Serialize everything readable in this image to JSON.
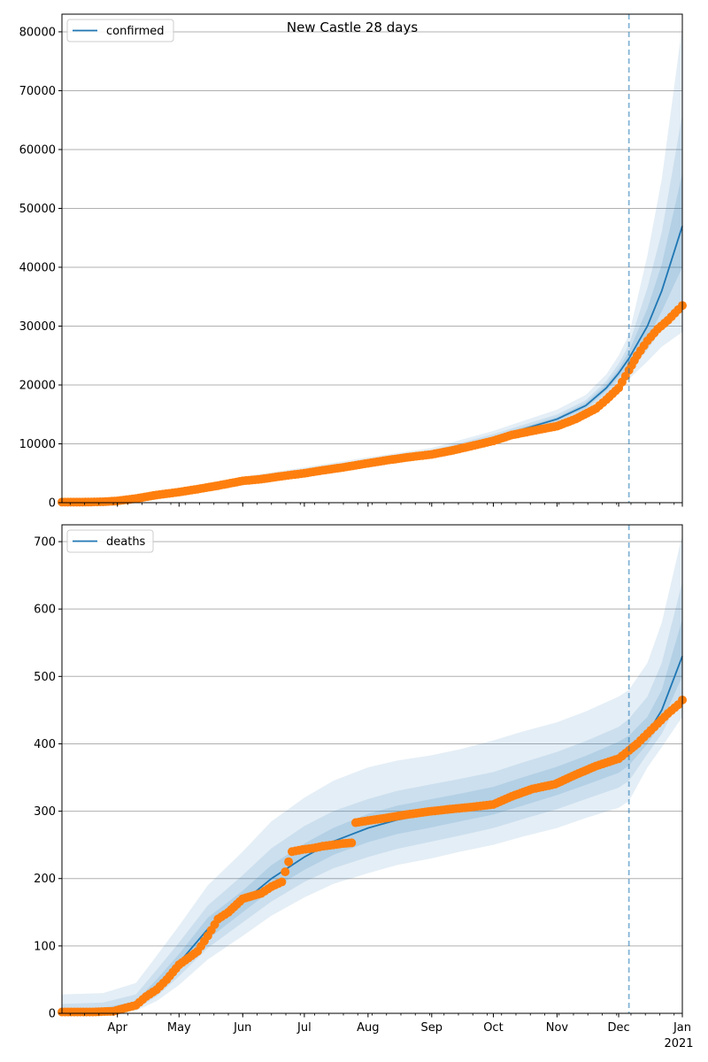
{
  "title": "New Castle 28 days",
  "x_axis": {
    "month_labels": [
      "Apr",
      "May",
      "Jun",
      "Jul",
      "Aug",
      "Sep",
      "Oct",
      "Nov",
      "Dec",
      "Jan"
    ],
    "year_label": "2021",
    "range": [
      "2020-03-05",
      "2021-01-01"
    ]
  },
  "forecast_start": "2020-12-06",
  "colors": {
    "model": "#1f77b4",
    "observed": "#ff7f0e",
    "band": "#1f77b4",
    "grid": "#b0b0b0",
    "forecast_line": "#1f77b4"
  },
  "chart_data": [
    {
      "type": "line",
      "name": "confirmed",
      "legend": "confirmed",
      "legend_position": "top-left",
      "grid": "horizontal",
      "ylim": [
        0,
        83000
      ],
      "yticks": [
        0,
        10000,
        20000,
        30000,
        40000,
        50000,
        60000,
        70000,
        80000
      ],
      "model_line": {
        "name": "confirmed",
        "x": [
          "2020-03-05",
          "2020-04-01",
          "2020-05-01",
          "2020-06-01",
          "2020-07-01",
          "2020-08-01",
          "2020-09-01",
          "2020-10-01",
          "2020-11-01",
          "2020-11-15",
          "2020-11-25",
          "2020-12-01",
          "2020-12-06",
          "2020-12-15",
          "2020-12-22",
          "2021-01-01"
        ],
        "y": [
          0,
          300,
          1900,
          3800,
          5300,
          6900,
          8400,
          11000,
          14200,
          16500,
          19500,
          22000,
          24500,
          30000,
          36000,
          47000
        ]
      },
      "bands": [
        {
          "x": [
            "2020-03-05",
            "2020-04-01",
            "2020-05-01",
            "2020-06-01",
            "2020-07-01",
            "2020-08-01",
            "2020-09-01",
            "2020-10-01",
            "2020-11-01",
            "2020-11-15",
            "2020-11-25",
            "2020-12-01",
            "2020-12-06",
            "2020-12-15",
            "2020-12-22",
            "2021-01-01"
          ],
          "lower": [
            0,
            150,
            1500,
            3300,
            4700,
            6200,
            7600,
            10000,
            13000,
            15000,
            17800,
            19800,
            21000,
            24000,
            26500,
            29000
          ],
          "upper": [
            200,
            500,
            2400,
            4400,
            6000,
            7700,
            9300,
            12200,
            15800,
            18300,
            21800,
            25000,
            28500,
            42000,
            55000,
            81000
          ]
        },
        {
          "x": [
            "2020-03-05",
            "2020-04-01",
            "2020-05-01",
            "2020-06-01",
            "2020-07-01",
            "2020-08-01",
            "2020-09-01",
            "2020-10-01",
            "2020-11-01",
            "2020-11-15",
            "2020-11-25",
            "2020-12-01",
            "2020-12-06",
            "2020-12-15",
            "2020-12-22",
            "2021-01-01"
          ],
          "lower": [
            0,
            200,
            1650,
            3500,
            4950,
            6500,
            7950,
            10450,
            13500,
            15600,
            18500,
            20700,
            22200,
            26000,
            29500,
            34000
          ],
          "upper": [
            120,
            420,
            2200,
            4150,
            5700,
            7350,
            8900,
            11650,
            15000,
            17400,
            20700,
            23600,
            26800,
            36500,
            46000,
            66000
          ]
        },
        {
          "x": [
            "2020-03-05",
            "2020-04-01",
            "2020-05-01",
            "2020-06-01",
            "2020-07-01",
            "2020-08-01",
            "2020-09-01",
            "2020-10-01",
            "2020-11-01",
            "2020-11-15",
            "2020-11-25",
            "2020-12-01",
            "2020-12-06",
            "2020-12-15",
            "2020-12-22",
            "2021-01-01"
          ],
          "lower": [
            0,
            250,
            1780,
            3650,
            5120,
            6700,
            8180,
            10720,
            13850,
            16050,
            19000,
            21350,
            23300,
            27800,
            32500,
            40000
          ],
          "upper": [
            60,
            360,
            2030,
            3970,
            5480,
            7100,
            8620,
            11300,
            14550,
            16950,
            20100,
            22700,
            25700,
            33000,
            40500,
            56000
          ]
        }
      ],
      "observed": {
        "x": [
          "2020-03-05",
          "2020-03-15",
          "2020-03-25",
          "2020-04-01",
          "2020-04-10",
          "2020-04-20",
          "2020-05-01",
          "2020-05-10",
          "2020-05-20",
          "2020-06-01",
          "2020-06-10",
          "2020-06-20",
          "2020-07-01",
          "2020-07-10",
          "2020-07-20",
          "2020-08-01",
          "2020-08-10",
          "2020-08-20",
          "2020-09-01",
          "2020-09-10",
          "2020-09-20",
          "2020-10-01",
          "2020-10-10",
          "2020-10-20",
          "2020-11-01",
          "2020-11-10",
          "2020-11-20",
          "2020-11-25",
          "2020-12-01",
          "2020-12-06",
          "2020-12-10",
          "2020-12-15",
          "2020-12-20",
          "2020-12-25",
          "2020-12-30",
          "2021-01-01"
        ],
        "y": [
          100,
          100,
          150,
          300,
          700,
          1300,
          1800,
          2300,
          2900,
          3700,
          4000,
          4500,
          5000,
          5500,
          6000,
          6700,
          7200,
          7700,
          8200,
          8800,
          9600,
          10500,
          11500,
          12200,
          13000,
          14200,
          16000,
          17500,
          19500,
          22500,
          25000,
          27500,
          29500,
          31000,
          32800,
          33500
        ]
      }
    },
    {
      "type": "line",
      "name": "deaths",
      "legend": "deaths",
      "legend_position": "top-left",
      "grid": "horizontal",
      "ylim": [
        0,
        725
      ],
      "yticks": [
        0,
        100,
        200,
        300,
        400,
        500,
        600,
        700
      ],
      "model_line": {
        "name": "deaths",
        "x": [
          "2020-03-05",
          "2020-03-25",
          "2020-04-10",
          "2020-04-20",
          "2020-05-01",
          "2020-05-15",
          "2020-06-01",
          "2020-06-15",
          "2020-07-01",
          "2020-07-15",
          "2020-08-01",
          "2020-08-15",
          "2020-09-01",
          "2020-09-15",
          "2020-10-01",
          "2020-10-15",
          "2020-11-01",
          "2020-11-15",
          "2020-12-01",
          "2020-12-06",
          "2020-12-15",
          "2020-12-22",
          "2021-01-01"
        ],
        "y": [
          0,
          2,
          12,
          40,
          75,
          125,
          165,
          200,
          232,
          255,
          275,
          287,
          297,
          305,
          315,
          328,
          345,
          360,
          380,
          390,
          415,
          450,
          530
        ]
      },
      "bands": [
        {
          "x": [
            "2020-03-05",
            "2020-03-25",
            "2020-04-10",
            "2020-04-20",
            "2020-05-01",
            "2020-05-15",
            "2020-06-01",
            "2020-06-15",
            "2020-07-01",
            "2020-07-15",
            "2020-08-01",
            "2020-08-15",
            "2020-09-01",
            "2020-09-15",
            "2020-10-01",
            "2020-10-15",
            "2020-11-01",
            "2020-11-15",
            "2020-12-01",
            "2020-12-06",
            "2020-12-15",
            "2020-12-22",
            "2021-01-01"
          ],
          "lower": [
            0,
            0,
            4,
            18,
            42,
            80,
            115,
            145,
            172,
            192,
            208,
            220,
            230,
            240,
            250,
            262,
            275,
            290,
            305,
            315,
            365,
            395,
            440
          ],
          "upper": [
            28,
            30,
            45,
            85,
            130,
            190,
            240,
            285,
            320,
            345,
            365,
            375,
            383,
            392,
            405,
            418,
            432,
            448,
            470,
            480,
            520,
            580,
            710
          ]
        },
        {
          "x": [
            "2020-03-05",
            "2020-03-25",
            "2020-04-10",
            "2020-04-20",
            "2020-05-01",
            "2020-05-15",
            "2020-06-01",
            "2020-06-15",
            "2020-07-01",
            "2020-07-15",
            "2020-08-01",
            "2020-08-15",
            "2020-09-01",
            "2020-09-15",
            "2020-10-01",
            "2020-10-15",
            "2020-11-01",
            "2020-11-15",
            "2020-12-01",
            "2020-12-06",
            "2020-12-15",
            "2020-12-22",
            "2021-01-01"
          ],
          "lower": [
            0,
            0,
            6,
            25,
            55,
            97,
            135,
            166,
            195,
            215,
            232,
            244,
            255,
            264,
            275,
            288,
            303,
            318,
            335,
            345,
            385,
            415,
            475
          ],
          "upper": [
            14,
            16,
            28,
            64,
            105,
            160,
            205,
            245,
            278,
            300,
            318,
            330,
            340,
            348,
            358,
            372,
            388,
            404,
            425,
            437,
            470,
            520,
            640
          ]
        },
        {
          "x": [
            "2020-03-05",
            "2020-03-25",
            "2020-04-10",
            "2020-04-20",
            "2020-05-01",
            "2020-05-15",
            "2020-06-01",
            "2020-06-15",
            "2020-07-01",
            "2020-07-15",
            "2020-08-01",
            "2020-08-15",
            "2020-09-01",
            "2020-09-15",
            "2020-10-01",
            "2020-10-15",
            "2020-11-01",
            "2020-11-15",
            "2020-12-01",
            "2020-12-06",
            "2020-12-15",
            "2020-12-22",
            "2021-01-01"
          ],
          "lower": [
            0,
            0,
            8,
            32,
            65,
            110,
            150,
            183,
            213,
            235,
            254,
            266,
            276,
            285,
            295,
            308,
            324,
            339,
            357,
            368,
            400,
            432,
            500
          ],
          "upper": [
            6,
            8,
            18,
            50,
            88,
            142,
            182,
            220,
            252,
            275,
            296,
            308,
            318,
            326,
            336,
            350,
            366,
            382,
            403,
            412,
            440,
            480,
            585
          ]
        }
      ],
      "observed": {
        "x": [
          "2020-03-05",
          "2020-03-20",
          "2020-03-30",
          "2020-04-05",
          "2020-04-10",
          "2020-04-15",
          "2020-04-20",
          "2020-04-25",
          "2020-05-01",
          "2020-05-10",
          "2020-05-15",
          "2020-05-20",
          "2020-05-25",
          "2020-06-01",
          "2020-06-10",
          "2020-06-15",
          "2020-06-20",
          "2020-06-25",
          "2020-06-30",
          "2020-07-05",
          "2020-07-10",
          "2020-07-15",
          "2020-07-20",
          "2020-07-24",
          "2020-07-26",
          "2020-08-01",
          "2020-08-10",
          "2020-08-20",
          "2020-09-01",
          "2020-09-10",
          "2020-09-20",
          "2020-10-01",
          "2020-10-10",
          "2020-10-20",
          "2020-10-31",
          "2020-11-10",
          "2020-11-20",
          "2020-12-01",
          "2020-12-06",
          "2020-12-10",
          "2020-12-15",
          "2020-12-20",
          "2020-12-25",
          "2020-12-30",
          "2021-01-01"
        ],
        "y": [
          2,
          2,
          3,
          8,
          12,
          25,
          35,
          50,
          72,
          92,
          115,
          140,
          150,
          170,
          178,
          188,
          195,
          240,
          243,
          245,
          248,
          250,
          252,
          253,
          283,
          286,
          290,
          295,
          300,
          303,
          306,
          310,
          322,
          333,
          340,
          354,
          367,
          378,
          390,
          400,
          415,
          430,
          445,
          458,
          465
        ]
      }
    }
  ]
}
